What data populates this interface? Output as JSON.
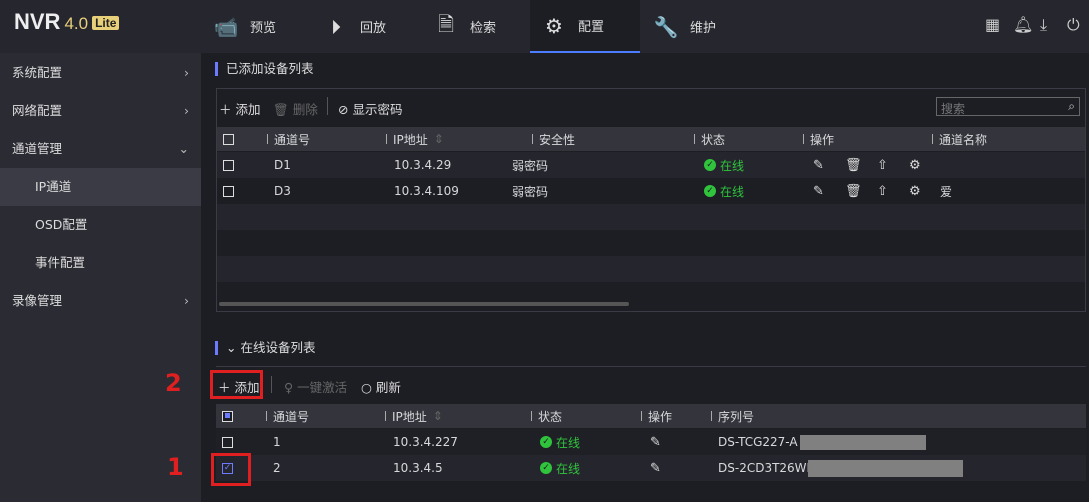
{
  "header": {
    "logo": "NVR",
    "version": "4.0",
    "edition": "Lite",
    "tabs": [
      {
        "label": "预览",
        "icon": "camera-icon"
      },
      {
        "label": "回放",
        "icon": "playback-icon"
      },
      {
        "label": "检索",
        "icon": "search-doc-icon"
      },
      {
        "label": "配置",
        "icon": "gear-icon",
        "active": true
      },
      {
        "label": "维护",
        "icon": "tools-icon"
      }
    ],
    "right_icons": [
      "qrcode-icon",
      "bell-icon",
      "download-icon",
      "power-icon"
    ]
  },
  "sidebar": {
    "items": [
      {
        "label": "系统配置"
      },
      {
        "label": "网络配置"
      },
      {
        "label": "通道管理",
        "expanded": true
      },
      {
        "label": "IP通道",
        "active": true
      },
      {
        "label": "OSD配置"
      },
      {
        "label": "事件配置"
      },
      {
        "label": "录像管理"
      }
    ]
  },
  "added": {
    "title": "已添加设备列表",
    "add": "添加",
    "delete": "删除",
    "show_password": "显示密码",
    "search_placeholder": "搜索",
    "headers": [
      "通道号",
      "IP地址",
      "安全性",
      "状态",
      "操作",
      "通道名称"
    ],
    "rows": [
      {
        "ch": "D1",
        "ip": "10.3.4.29",
        "sec": "弱密码",
        "status": "在线",
        "name": ""
      },
      {
        "ch": "D3",
        "ip": "10.3.4.109",
        "sec": "弱密码",
        "status": "在线",
        "name": "爱"
      }
    ]
  },
  "online": {
    "title": "在线设备列表",
    "add": "添加",
    "activate": "一键激活",
    "refresh": "刷新",
    "headers": [
      "通道号",
      "IP地址",
      "状态",
      "操作",
      "序列号"
    ],
    "rows": [
      {
        "ch": "1",
        "ip": "10.3.4.227",
        "status": "在线",
        "serial": "DS-TCG227-A 2",
        "checked": false
      },
      {
        "ch": "2",
        "ip": "10.3.4.5",
        "status": "在线",
        "serial": "DS-2CD3T26WD",
        "checked": true
      }
    ]
  },
  "annotations": {
    "a1": "1",
    "a2": "2",
    "color": "#e02020"
  },
  "colors": {
    "accent": "#6c7bff",
    "online": "#2fc43c"
  }
}
